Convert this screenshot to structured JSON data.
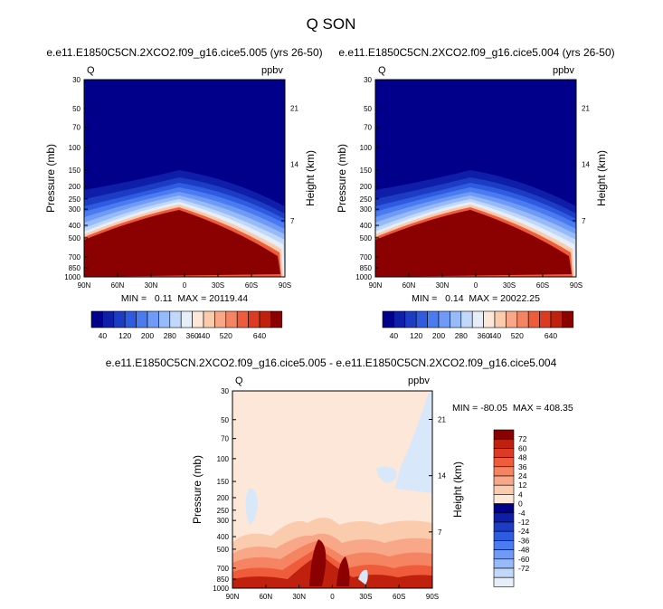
{
  "figure": {
    "title": "Q SON"
  },
  "colors": {
    "cool": [
      "#00008b",
      "#0f1ea8",
      "#1c3cc4",
      "#2f5be0",
      "#4a7bf0",
      "#6f9bf6",
      "#97baf8",
      "#c2d8fa",
      "#e6eff9"
    ],
    "warm": [
      "#fde7d8",
      "#fbcbae",
      "#f8a888",
      "#f58462",
      "#ef5c3b",
      "#dd3a23",
      "#c0210f",
      "#8b0000"
    ]
  },
  "chart_data": [
    {
      "type": "heatmap",
      "title": "e.e11.E1850C5CN.2XCO2.f09_g16.cice5.005 (yrs 26-50)",
      "left_label": "Q",
      "right_label": "ppbv",
      "ylabel": "Pressure (mb)",
      "ylabel_right": "Height (km)",
      "x_ticks": [
        "90N",
        "60N",
        "30N",
        "0",
        "30S",
        "60S",
        "90S"
      ],
      "y_ticks": [
        "30",
        "50",
        "70",
        "100",
        "150",
        "200",
        "250",
        "300",
        "400",
        "500",
        "700",
        "850",
        "1000"
      ],
      "y_right_ticks": [
        "21",
        "14",
        "7"
      ],
      "stats": "MIN =   0.11  MAX = 20119.44",
      "colorbar_labels": [
        "40",
        "120",
        "200",
        "280",
        "360",
        "440",
        "520",
        "640"
      ]
    },
    {
      "type": "heatmap",
      "title": "e.e11.E1850C5CN.2XCO2.f09_g16.cice5.004 (yrs 26-50)",
      "left_label": "Q",
      "right_label": "ppbv",
      "ylabel": "Pressure (mb)",
      "ylabel_right": "Height (km)",
      "x_ticks": [
        "90N",
        "60N",
        "30N",
        "0",
        "30S",
        "60S",
        "90S"
      ],
      "y_ticks": [
        "30",
        "50",
        "70",
        "100",
        "150",
        "200",
        "250",
        "300",
        "400",
        "500",
        "700",
        "850",
        "1000"
      ],
      "y_right_ticks": [
        "21",
        "14",
        "7"
      ],
      "stats": "MIN =   0.14  MAX = 20022.25",
      "colorbar_labels": [
        "40",
        "120",
        "200",
        "280",
        "360",
        "440",
        "520",
        "640"
      ]
    },
    {
      "type": "heatmap",
      "title": "e.e11.E1850C5CN.2XCO2.f09_g16.cice5.005 - e.e11.E1850C5CN.2XCO2.f09_g16.cice5.004",
      "left_label": "Q",
      "right_label": "ppbv",
      "ylabel": "Pressure (mb)",
      "ylabel_right": "Height (km)",
      "x_ticks": [
        "90N",
        "60N",
        "30N",
        "0",
        "30S",
        "60S",
        "90S"
      ],
      "y_ticks": [
        "30",
        "50",
        "70",
        "100",
        "150",
        "200",
        "250",
        "300",
        "400",
        "500",
        "700",
        "850",
        "1000"
      ],
      "y_right_ticks": [
        "21",
        "14",
        "7"
      ],
      "stats": "MIN = -80.05  MAX = 408.35",
      "colorbar_labels": [
        "72",
        "60",
        "48",
        "36",
        "24",
        "12",
        "4",
        "0",
        "-4",
        "-12",
        "-24",
        "-36",
        "-48",
        "-60",
        "-72"
      ]
    }
  ]
}
